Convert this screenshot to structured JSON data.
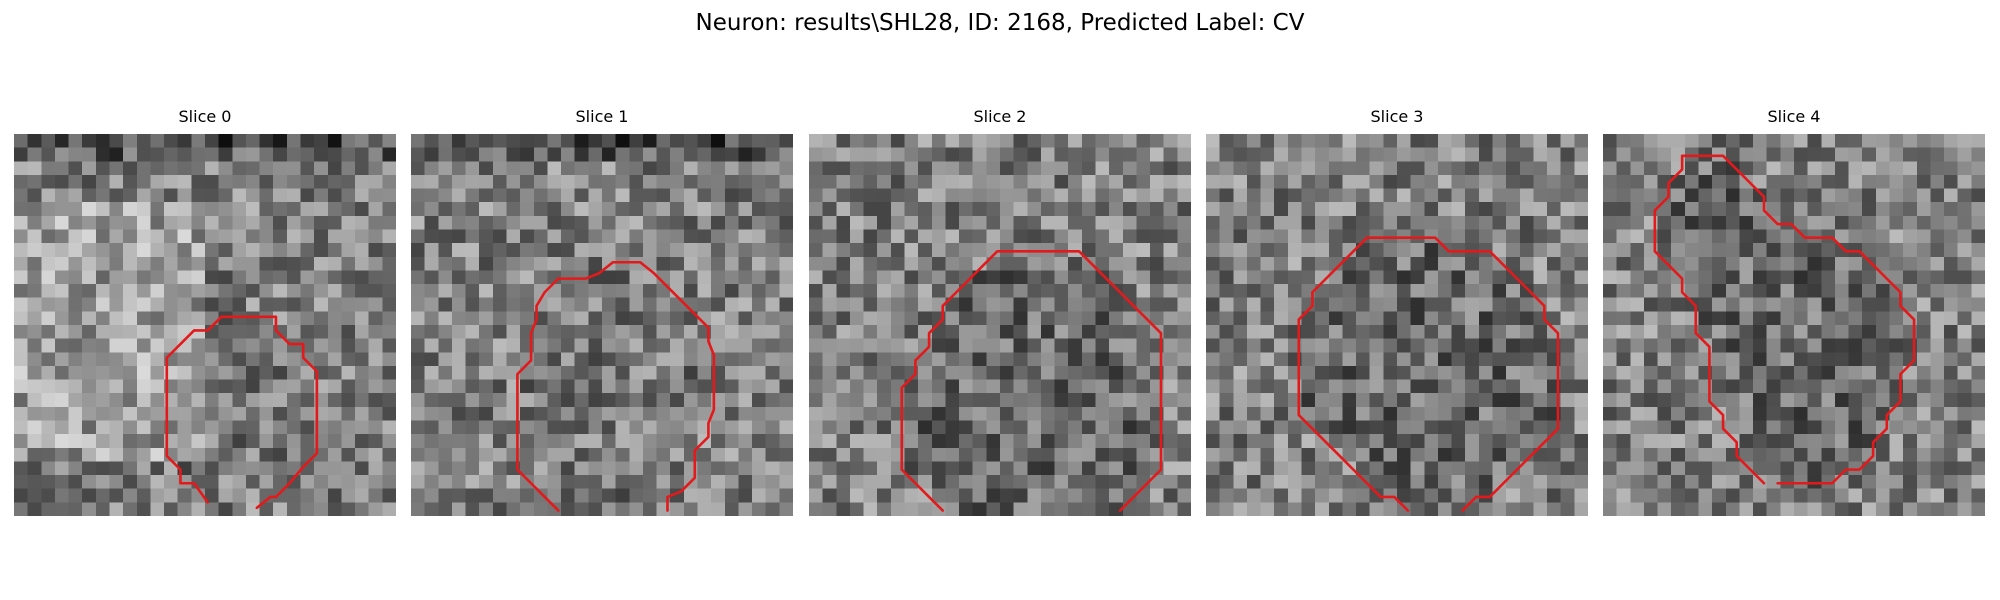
{
  "title": "Neuron: results\\SHL28, ID: 2168, Predicted Label: CV",
  "contour_color": "#e31a1c",
  "panels": [
    {
      "title": "Slice 0",
      "contour": [
        [
          14.2,
          27
        ],
        [
          13.2,
          25.6
        ],
        [
          12.2,
          25.6
        ],
        [
          12.2,
          24.6
        ],
        [
          11.2,
          23.6
        ],
        [
          11.2,
          22.4
        ],
        [
          11.2,
          21.6
        ],
        [
          11.2,
          20.4
        ],
        [
          11.2,
          19.4
        ],
        [
          11.2,
          18.4
        ],
        [
          11.2,
          17.4
        ],
        [
          11.2,
          16.4
        ],
        [
          12.2,
          15.4
        ],
        [
          13.2,
          14.4
        ],
        [
          14.2,
          14.4
        ],
        [
          15.2,
          13.4
        ],
        [
          16.2,
          13.4
        ],
        [
          17.2,
          13.4
        ],
        [
          18.2,
          13.4
        ],
        [
          19.2,
          13.4
        ],
        [
          19.2,
          14.4
        ],
        [
          20.2,
          15.4
        ],
        [
          21.2,
          15.4
        ],
        [
          21.2,
          16.4
        ],
        [
          22.2,
          17.4
        ],
        [
          22.2,
          18.4
        ],
        [
          22.2,
          19.4
        ],
        [
          22.2,
          20.4
        ],
        [
          22.2,
          21.4
        ],
        [
          22.2,
          22.4
        ],
        [
          22.2,
          23.4
        ],
        [
          21.2,
          24.4
        ],
        [
          20.2,
          25.6
        ],
        [
          19.2,
          26.6
        ],
        [
          18.8,
          26.6
        ],
        [
          17.8,
          27.4
        ]
      ]
    },
    {
      "title": "Slice 1",
      "contour": [
        [
          10.8,
          27.6
        ],
        [
          9.8,
          26.6
        ],
        [
          8.8,
          25.6
        ],
        [
          7.8,
          24.6
        ],
        [
          7.8,
          23.6
        ],
        [
          7.8,
          22.6
        ],
        [
          7.8,
          21.6
        ],
        [
          7.8,
          20.6
        ],
        [
          7.8,
          19.6
        ],
        [
          7.8,
          18.6
        ],
        [
          7.8,
          17.6
        ],
        [
          8.8,
          16.6
        ],
        [
          8.8,
          15.6
        ],
        [
          8.8,
          14.6
        ],
        [
          9.2,
          13.6
        ],
        [
          9.2,
          12.6
        ],
        [
          9.8,
          11.6
        ],
        [
          10.8,
          10.6
        ],
        [
          11.8,
          10.6
        ],
        [
          12.8,
          10.6
        ],
        [
          13.8,
          10.2
        ],
        [
          14.8,
          9.4
        ],
        [
          15.8,
          9.4
        ],
        [
          16.8,
          9.4
        ],
        [
          17.8,
          10.2
        ],
        [
          18.8,
          11.2
        ],
        [
          19.8,
          12.2
        ],
        [
          20.8,
          13.2
        ],
        [
          21.8,
          14.2
        ],
        [
          21.8,
          15.2
        ],
        [
          22.2,
          16.2
        ],
        [
          22.2,
          17.2
        ],
        [
          22.2,
          18.2
        ],
        [
          22.2,
          19.2
        ],
        [
          22.2,
          20.2
        ],
        [
          21.8,
          21.2
        ],
        [
          21.8,
          22.2
        ],
        [
          20.8,
          23.2
        ],
        [
          20.8,
          24.2
        ],
        [
          20.8,
          25.2
        ],
        [
          19.8,
          26.2
        ],
        [
          18.8,
          26.6
        ],
        [
          18.8,
          27.6
        ]
      ]
    },
    {
      "title": "Slice 2",
      "contour": [
        [
          9.8,
          27.6
        ],
        [
          8.8,
          26.6
        ],
        [
          7.8,
          25.6
        ],
        [
          6.8,
          24.6
        ],
        [
          6.8,
          23.6
        ],
        [
          6.8,
          22.6
        ],
        [
          6.8,
          21.6
        ],
        [
          6.8,
          20.6
        ],
        [
          6.8,
          19.6
        ],
        [
          6.8,
          18.6
        ],
        [
          7.8,
          17.6
        ],
        [
          7.8,
          16.6
        ],
        [
          8.8,
          15.6
        ],
        [
          8.8,
          14.6
        ],
        [
          9.8,
          13.6
        ],
        [
          9.8,
          12.6
        ],
        [
          10.8,
          11.6
        ],
        [
          11.8,
          10.6
        ],
        [
          12.8,
          9.6
        ],
        [
          13.8,
          8.6
        ],
        [
          14.8,
          8.6
        ],
        [
          15.8,
          8.6
        ],
        [
          16.8,
          8.6
        ],
        [
          17.8,
          8.6
        ],
        [
          18.8,
          8.6
        ],
        [
          19.8,
          8.6
        ],
        [
          20.8,
          9.6
        ],
        [
          21.8,
          10.6
        ],
        [
          22.8,
          11.6
        ],
        [
          23.8,
          12.6
        ],
        [
          24.8,
          13.6
        ],
        [
          25.8,
          14.6
        ],
        [
          25.8,
          15.6
        ],
        [
          25.8,
          16.6
        ],
        [
          25.8,
          17.6
        ],
        [
          25.8,
          18.6
        ],
        [
          25.8,
          19.6
        ],
        [
          25.8,
          20.6
        ],
        [
          25.8,
          21.6
        ],
        [
          25.8,
          22.6
        ],
        [
          25.8,
          23.6
        ],
        [
          25.8,
          24.6
        ],
        [
          24.8,
          25.6
        ],
        [
          23.8,
          26.6
        ],
        [
          22.8,
          27.6
        ]
      ]
    },
    {
      "title": "Slice 3",
      "contour": [
        [
          14.8,
          27.6
        ],
        [
          13.8,
          26.6
        ],
        [
          12.8,
          26.6
        ],
        [
          11.8,
          25.6
        ],
        [
          10.8,
          24.6
        ],
        [
          9.8,
          23.6
        ],
        [
          8.8,
          22.6
        ],
        [
          7.8,
          21.6
        ],
        [
          6.8,
          20.6
        ],
        [
          6.8,
          19.6
        ],
        [
          6.8,
          18.6
        ],
        [
          6.8,
          17.6
        ],
        [
          6.8,
          16.6
        ],
        [
          6.8,
          15.6
        ],
        [
          6.8,
          14.6
        ],
        [
          6.8,
          13.6
        ],
        [
          7.8,
          12.6
        ],
        [
          7.8,
          11.6
        ],
        [
          8.8,
          10.6
        ],
        [
          9.8,
          9.6
        ],
        [
          10.8,
          8.6
        ],
        [
          11.8,
          7.6
        ],
        [
          12.8,
          7.6
        ],
        [
          13.8,
          7.6
        ],
        [
          14.8,
          7.6
        ],
        [
          15.8,
          7.6
        ],
        [
          16.8,
          7.6
        ],
        [
          17.8,
          8.6
        ],
        [
          18.8,
          8.6
        ],
        [
          19.8,
          8.6
        ],
        [
          20.8,
          8.6
        ],
        [
          21.8,
          9.6
        ],
        [
          22.8,
          10.6
        ],
        [
          23.8,
          11.6
        ],
        [
          24.8,
          12.6
        ],
        [
          24.8,
          13.6
        ],
        [
          25.8,
          14.6
        ],
        [
          25.8,
          15.6
        ],
        [
          25.8,
          16.6
        ],
        [
          25.8,
          17.6
        ],
        [
          25.8,
          18.6
        ],
        [
          25.8,
          19.6
        ],
        [
          25.8,
          20.6
        ],
        [
          25.8,
          21.6
        ],
        [
          24.8,
          22.6
        ],
        [
          23.8,
          23.6
        ],
        [
          22.8,
          24.6
        ],
        [
          21.8,
          25.6
        ],
        [
          20.8,
          26.6
        ],
        [
          19.8,
          26.6
        ],
        [
          18.8,
          27.6
        ]
      ]
    },
    {
      "title": "Slice 4",
      "contour": [
        [
          11.8,
          25.6
        ],
        [
          10.8,
          24.6
        ],
        [
          9.8,
          23.6
        ],
        [
          9.8,
          22.6
        ],
        [
          8.8,
          21.6
        ],
        [
          8.8,
          20.6
        ],
        [
          7.8,
          19.6
        ],
        [
          7.8,
          18.6
        ],
        [
          7.8,
          17.6
        ],
        [
          7.8,
          16.6
        ],
        [
          7.8,
          15.6
        ],
        [
          6.8,
          14.6
        ],
        [
          6.8,
          13.6
        ],
        [
          6.8,
          12.6
        ],
        [
          5.8,
          11.6
        ],
        [
          5.8,
          10.6
        ],
        [
          4.8,
          9.6
        ],
        [
          3.8,
          8.6
        ],
        [
          3.8,
          7.6
        ],
        [
          3.8,
          6.6
        ],
        [
          3.8,
          5.6
        ],
        [
          4.8,
          4.6
        ],
        [
          4.8,
          3.6
        ],
        [
          5.8,
          2.6
        ],
        [
          5.8,
          1.6
        ],
        [
          6.8,
          1.6
        ],
        [
          7.8,
          1.6
        ],
        [
          8.8,
          1.6
        ],
        [
          9.8,
          2.6
        ],
        [
          10.8,
          3.6
        ],
        [
          11.8,
          4.6
        ],
        [
          11.8,
          5.6
        ],
        [
          12.8,
          6.6
        ],
        [
          13.8,
          6.6
        ],
        [
          14.8,
          7.6
        ],
        [
          15.8,
          7.6
        ],
        [
          16.8,
          7.6
        ],
        [
          17.8,
          8.6
        ],
        [
          18.8,
          8.6
        ],
        [
          19.8,
          9.6
        ],
        [
          20.8,
          10.6
        ],
        [
          21.8,
          11.6
        ],
        [
          21.8,
          12.6
        ],
        [
          22.8,
          13.6
        ],
        [
          22.8,
          14.6
        ],
        [
          22.8,
          15.6
        ],
        [
          22.8,
          16.6
        ],
        [
          21.8,
          17.6
        ],
        [
          21.8,
          18.6
        ],
        [
          21.8,
          19.6
        ],
        [
          20.8,
          20.6
        ],
        [
          20.8,
          21.6
        ],
        [
          19.8,
          22.6
        ],
        [
          19.8,
          23.6
        ],
        [
          18.8,
          24.6
        ],
        [
          17.8,
          24.6
        ],
        [
          16.8,
          25.6
        ],
        [
          15.8,
          25.6
        ],
        [
          14.8,
          25.6
        ],
        [
          13.8,
          25.6
        ],
        [
          12.8,
          25.6
        ]
      ]
    }
  ]
}
